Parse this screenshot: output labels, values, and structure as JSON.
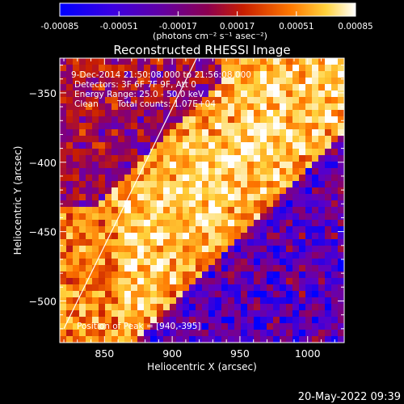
{
  "colorbar": {
    "ticks": [
      "-0.00085",
      "-0.00051",
      "-0.00017",
      "0.00017",
      "0.00051",
      "0.00085"
    ],
    "unit_label": "(photons cm⁻² s⁻¹ asec⁻²)",
    "range": [
      -0.00085,
      0.00085
    ]
  },
  "title": "Reconstructed RHESSI Image",
  "annotations": [
    "9-Dec-2014 21:50:08.000 to 21:56:08.000",
    "Detectors: 3F 6F 7F 9F, Att 0",
    "Energy Range: 25.0 - 50.0 keV",
    "Clean",
    "Total counts: 1.07E+04"
  ],
  "peak_label": "Position of Peak = [940,-395]",
  "footer_timestamp": "20-May-2022 09:39",
  "colors": {
    "background": "#000000",
    "text": "#ffffff",
    "colormap": [
      "#0000ff",
      "#5a00c8",
      "#8c0064",
      "#c81e00",
      "#ff7800",
      "#ffd23c",
      "#ffffff"
    ]
  },
  "chart_data": {
    "type": "heatmap",
    "title": "Reconstructed RHESSI Image",
    "xlabel": "Heliocentric X (arcsec)",
    "ylabel": "Heliocentric Y (arcsec)",
    "xlim": [
      817,
      1027
    ],
    "ylim": [
      -530,
      -325
    ],
    "x_ticks": [
      850,
      900,
      950,
      1000
    ],
    "y_ticks": [
      -350,
      -400,
      -450,
      -500
    ],
    "x_tick_labels": [
      "850",
      "900",
      "950",
      "1000"
    ],
    "y_tick_labels": [
      "−350",
      "−400",
      "−450",
      "−500"
    ],
    "limb_line": [
      [
        820,
        -520
      ],
      [
        918,
        -325
      ]
    ],
    "peak": [
      940,
      -395
    ],
    "legend": "colorbar-top",
    "grid": false
  }
}
